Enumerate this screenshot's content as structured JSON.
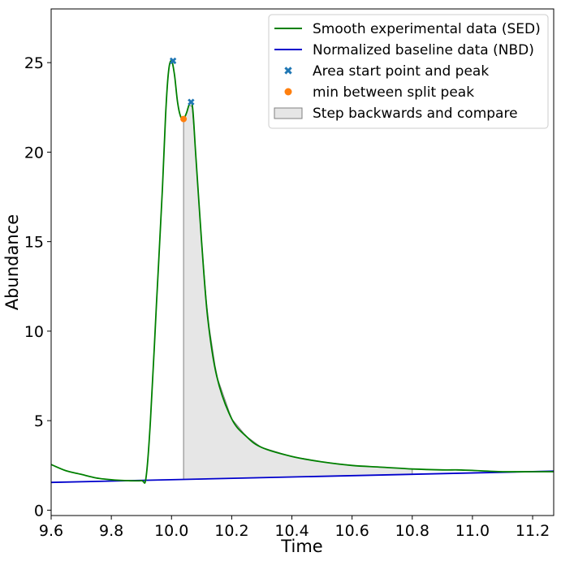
{
  "chart_data": {
    "type": "line",
    "title": "",
    "xlabel": "Time",
    "ylabel": "Abundance",
    "xlim": [
      9.6,
      11.27
    ],
    "ylim": [
      -0.3,
      28
    ],
    "x_ticks": [
      9.6,
      9.8,
      10.0,
      10.2,
      10.4,
      10.6,
      10.8,
      11.0,
      11.2
    ],
    "x_tick_labels": [
      "9.6",
      "9.8",
      "10.0",
      "10.2",
      "10.4",
      "10.6",
      "10.8",
      "11.0",
      "11.2"
    ],
    "y_ticks": [
      0,
      5,
      10,
      15,
      20,
      25
    ],
    "y_tick_labels": [
      "0",
      "5",
      "10",
      "15",
      "20",
      "25"
    ],
    "grid": false,
    "legend_position": "top-right",
    "series": [
      {
        "name": "Smooth experimental data (SED)",
        "kind": "line",
        "color": "#008000",
        "x": [
          9.6,
          9.65,
          9.7,
          9.75,
          9.8,
          9.85,
          9.9,
          9.915,
          9.93,
          9.95,
          9.97,
          9.98,
          9.99,
          10.0,
          10.01,
          10.02,
          10.03,
          10.04,
          10.05,
          10.06,
          10.07,
          10.08,
          10.1,
          10.12,
          10.15,
          10.2,
          10.25,
          10.3,
          10.4,
          10.5,
          10.6,
          10.7,
          10.8,
          10.9,
          10.95,
          11.0,
          11.1,
          11.2,
          11.27
        ],
        "y": [
          2.55,
          2.2,
          2.0,
          1.8,
          1.7,
          1.65,
          1.65,
          1.8,
          5.0,
          11.5,
          18.0,
          22.0,
          24.5,
          25.1,
          24.3,
          22.8,
          22.0,
          21.85,
          22.2,
          22.7,
          22.5,
          20.0,
          15.0,
          10.8,
          7.5,
          5.1,
          4.1,
          3.5,
          3.0,
          2.7,
          2.5,
          2.4,
          2.3,
          2.25,
          2.25,
          2.22,
          2.15,
          2.15,
          2.15
        ]
      },
      {
        "name": "Normalized baseline data (NBD)",
        "kind": "line",
        "color": "#0000cc",
        "x": [
          9.6,
          11.27
        ],
        "y": [
          1.55,
          2.18
        ]
      },
      {
        "name": "Area start point and peak",
        "kind": "marker-x",
        "color": "#1f77b4",
        "x": [
          10.005,
          10.065
        ],
        "y": [
          25.1,
          22.8
        ]
      },
      {
        "name": "min between split peak",
        "kind": "marker-dot",
        "color": "#ff7f0e",
        "x": [
          10.04
        ],
        "y": [
          21.85
        ]
      },
      {
        "name": "Step backwards and compare",
        "kind": "area",
        "color": "#e6e6e6",
        "edge_color": "#808080",
        "x_from": 10.04,
        "x_to": 10.8
      }
    ]
  }
}
